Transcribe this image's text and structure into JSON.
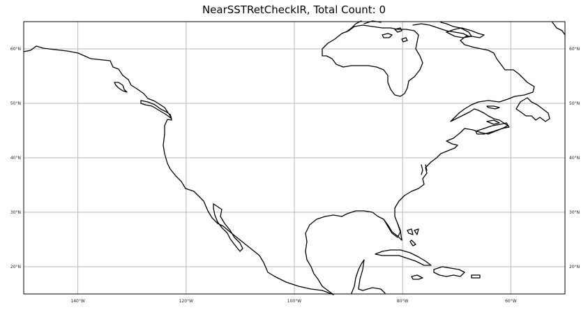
{
  "title": "NearSSTRetCheckIR, Total Count: 0",
  "map": {
    "projection": "PlateCarree",
    "extent": {
      "lon_min": -150,
      "lon_max": -50,
      "lat_min": 15,
      "lat_max": 65
    },
    "gridlines": true,
    "grid_color": "#b8b8b8",
    "coastline_color": "#000000",
    "observation_count": 0
  },
  "lon_ticks": [
    {
      "value": -140,
      "label": "140°W"
    },
    {
      "value": -120,
      "label": "120°W"
    },
    {
      "value": -100,
      "label": "100°W"
    },
    {
      "value": -80,
      "label": "80°W"
    },
    {
      "value": -60,
      "label": "60°W"
    }
  ],
  "lat_ticks": [
    {
      "value": 20,
      "label": "20°N"
    },
    {
      "value": 30,
      "label": "30°N"
    },
    {
      "value": 40,
      "label": "40°N"
    },
    {
      "value": 50,
      "label": "50°N"
    },
    {
      "value": 60,
      "label": "60°N"
    }
  ]
}
